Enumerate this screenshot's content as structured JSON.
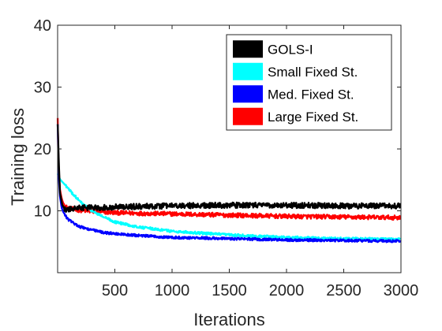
{
  "chart_data": {
    "type": "line",
    "title": "",
    "xlabel": "Iterations",
    "ylabel": "Training loss",
    "xlim": [
      0,
      3000
    ],
    "ylim": [
      0,
      40
    ],
    "xticks": [
      500,
      1000,
      1500,
      2000,
      2500,
      3000
    ],
    "yticks": [
      10,
      20,
      30,
      40
    ],
    "grid": false,
    "box": true,
    "legend_position": "top-right",
    "series": [
      {
        "name": "Large Fixed St.",
        "color": "#ff0000",
        "noise": 0.35,
        "x": [
          1,
          5,
          10,
          20,
          35,
          50,
          75,
          100,
          150,
          200,
          300,
          400,
          500,
          700,
          1000,
          1500,
          2000,
          2500,
          3000
        ],
        "y": [
          25,
          20,
          16.5,
          13.5,
          12.0,
          11.2,
          10.6,
          10.4,
          10.2,
          10.1,
          9.9,
          9.8,
          9.7,
          9.6,
          9.5,
          9.3,
          9.1,
          9.0,
          8.9
        ]
      },
      {
        "name": "Small Fixed St.",
        "color": "#00ffff",
        "noise": 0.2,
        "x": [
          1,
          10,
          25,
          50,
          75,
          100,
          150,
          200,
          300,
          400,
          500,
          700,
          1000,
          1500,
          2000,
          2500,
          3000
        ],
        "y": [
          16,
          15.5,
          15.0,
          14.5,
          14.0,
          13.4,
          12.4,
          11.4,
          10.0,
          9.0,
          8.2,
          7.4,
          6.7,
          6.1,
          5.7,
          5.5,
          5.4
        ]
      },
      {
        "name": "Med. Fixed St.",
        "color": "#0000ff",
        "noise": 0.2,
        "x": [
          1,
          5,
          10,
          20,
          35,
          50,
          75,
          100,
          150,
          200,
          300,
          400,
          500,
          700,
          1000,
          1500,
          2000,
          2500,
          3000
        ],
        "y": [
          24,
          20,
          15.5,
          12.5,
          10.5,
          9.8,
          9.0,
          8.5,
          7.9,
          7.4,
          6.9,
          6.5,
          6.3,
          6.0,
          5.7,
          5.5,
          5.3,
          5.2,
          5.1
        ]
      },
      {
        "name": "GOLS-I",
        "color": "#000000",
        "noise": 0.45,
        "x": [
          1,
          10,
          20,
          40,
          60,
          80,
          100,
          150,
          200,
          300,
          500,
          700,
          1000,
          1500,
          2000,
          2500,
          3000
        ],
        "y": [
          24,
          18,
          13,
          11.0,
          10.3,
          10.1,
          10.2,
          10.4,
          10.5,
          10.5,
          10.6,
          10.7,
          10.8,
          10.9,
          10.9,
          10.8,
          10.8
        ]
      }
    ],
    "legend_order": [
      "GOLS-I",
      "Small Fixed St.",
      "Med. Fixed St.",
      "Large Fixed St."
    ]
  }
}
